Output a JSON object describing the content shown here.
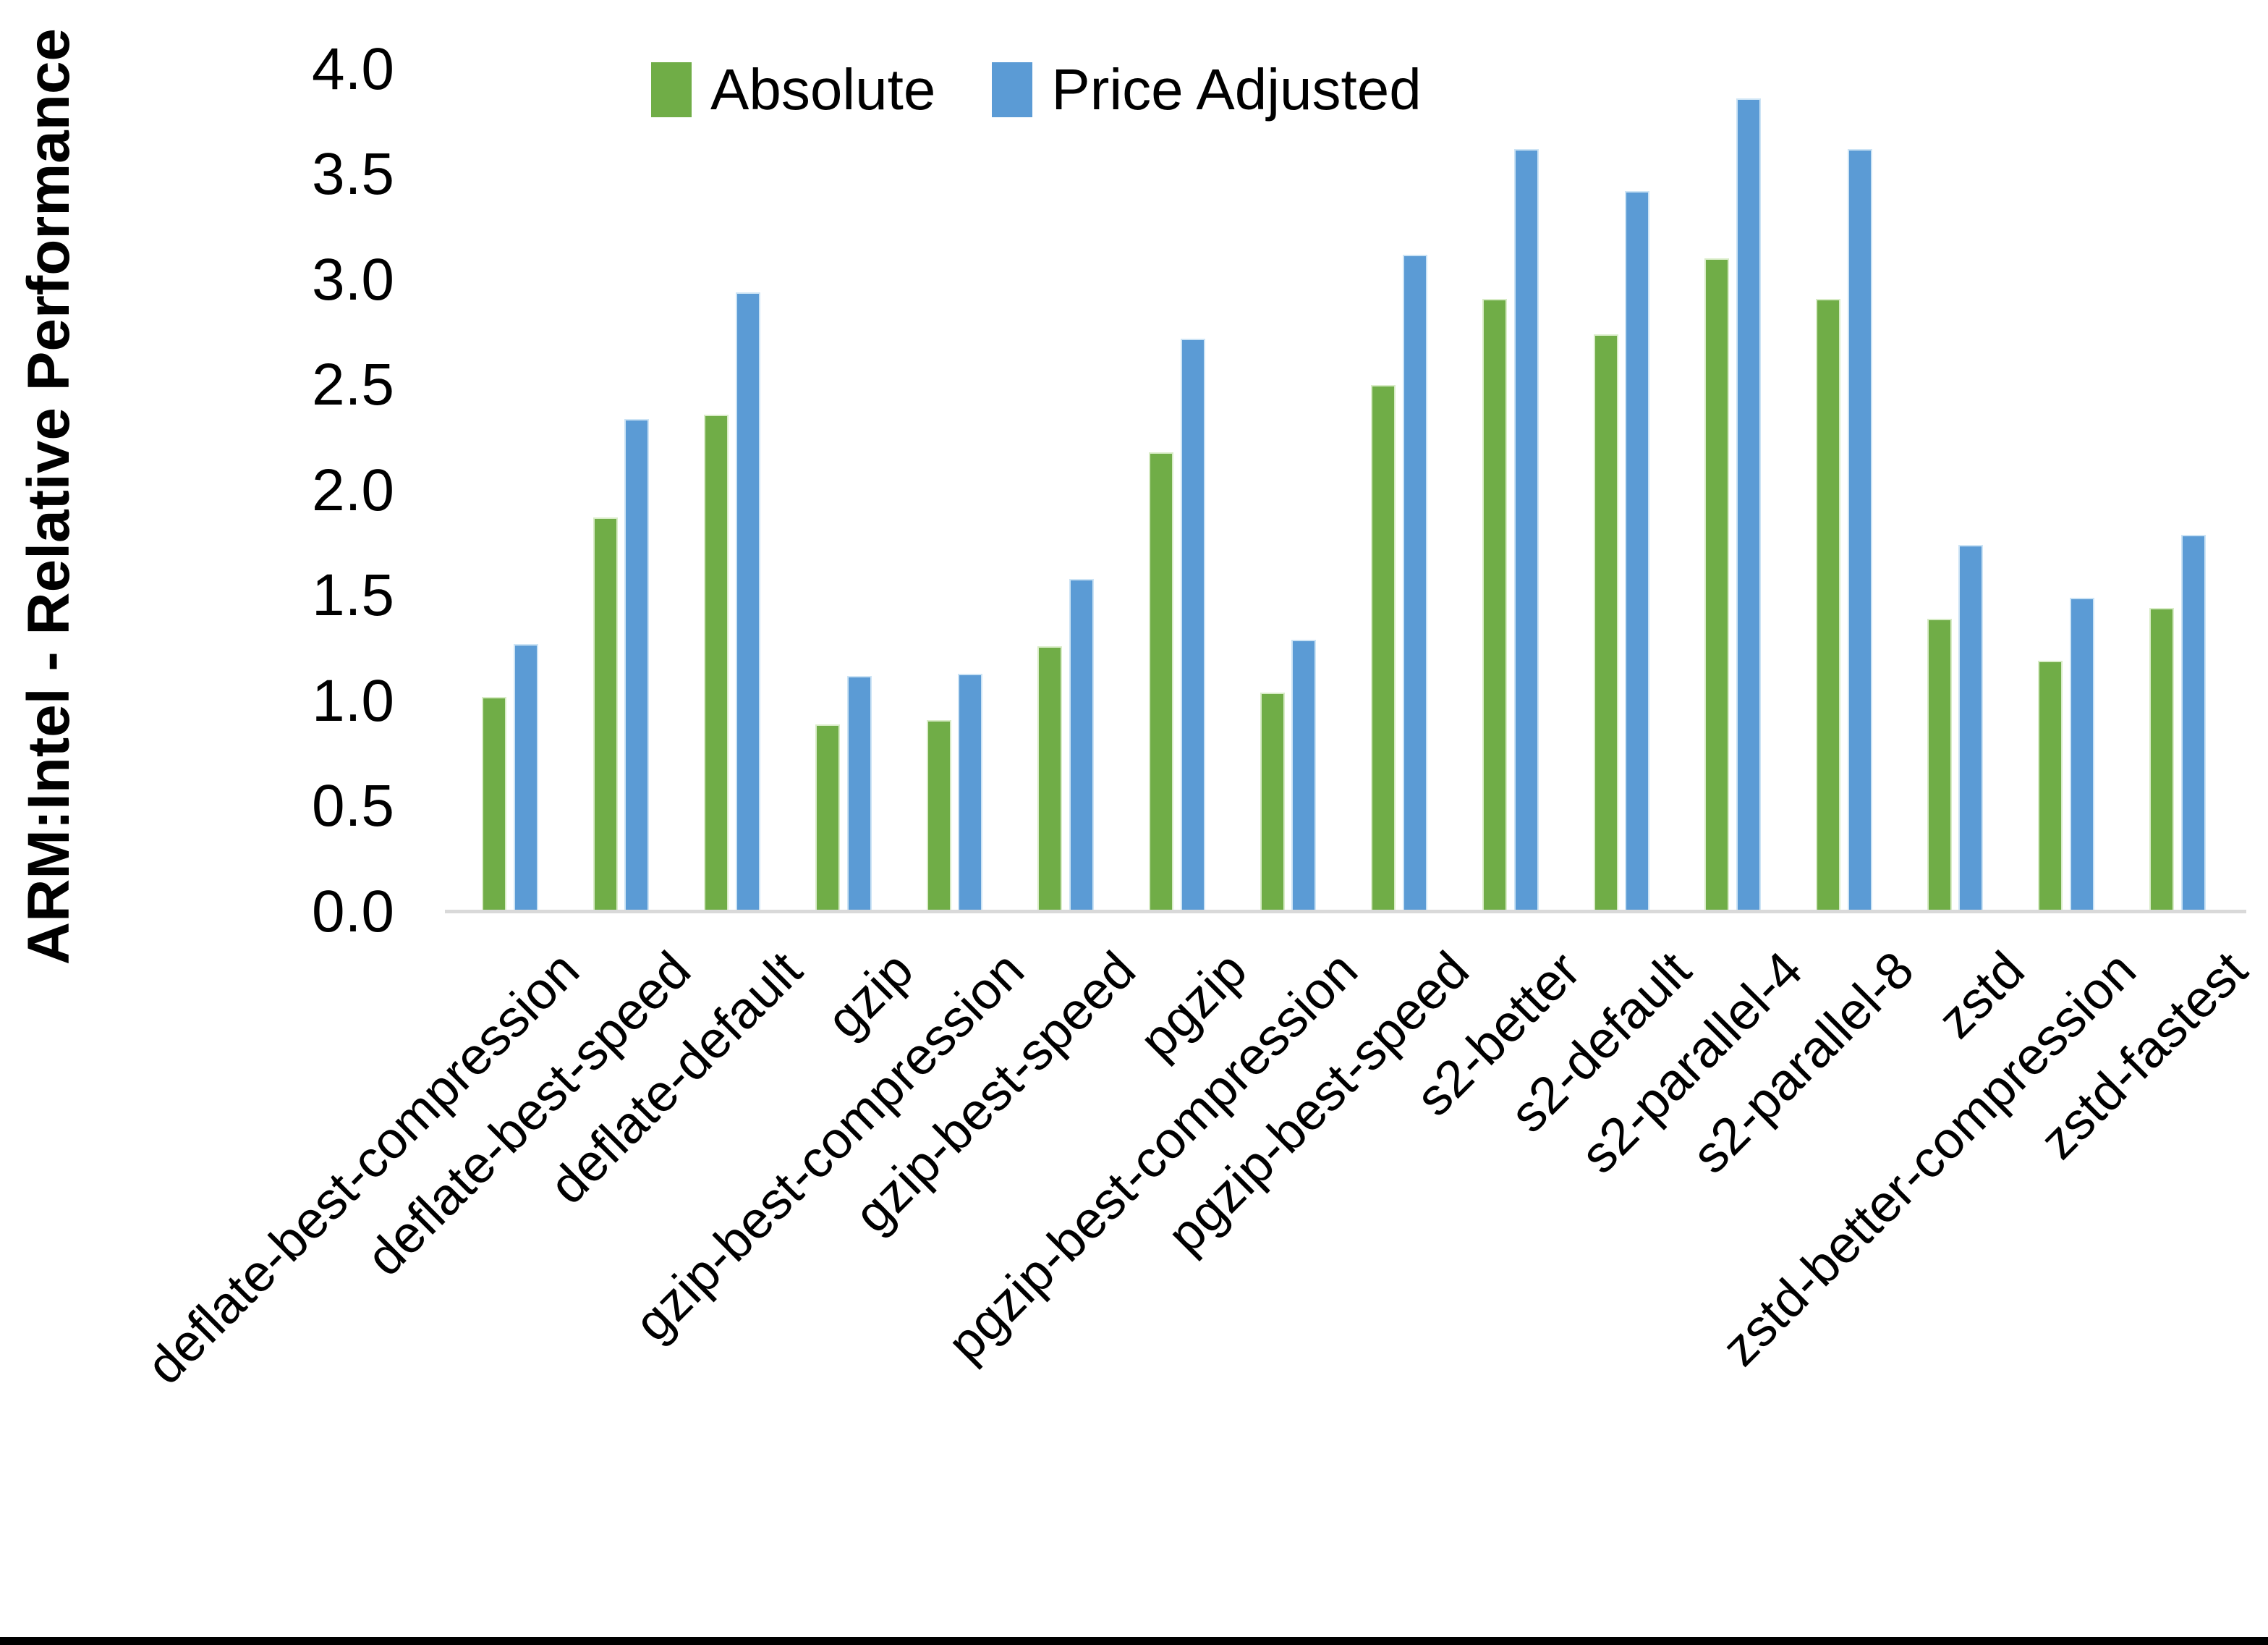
{
  "chart_data": {
    "type": "bar",
    "title": "",
    "xlabel": "",
    "ylabel": "ARM:Intel - Relative Performance",
    "ylim": [
      0.0,
      4.0
    ],
    "ytick_step": 0.5,
    "ytick_labels": [
      "4.0",
      "3.5",
      "3.0",
      "2.5",
      "2.0",
      "1.5",
      "1.0",
      "0.5",
      "0.0"
    ],
    "grid": "off",
    "legend_position": "top-center",
    "axis_line_color": "#d9d9d9",
    "background_color": "#ffffff",
    "bottom_border_color": "#000000",
    "categories": [
      "deflate-best-compression",
      "deflate-best-speed",
      "deflate-default",
      "gzip",
      "gzip-best-compression",
      "gzip-best-speed",
      "pgzip",
      "pgzip-best-compression",
      "pgzip-best-speed",
      "s2-better",
      "s2-default",
      "s2-parallel-4",
      "s2-parallel-8",
      "zstd",
      "zstd-better-compression",
      "zstd-fastest"
    ],
    "series": [
      {
        "name": "Absolute",
        "color": "#70AD47",
        "edge_color": "#d9ecc8",
        "values": [
          1.02,
          1.87,
          2.36,
          0.89,
          0.91,
          1.26,
          2.18,
          1.04,
          2.5,
          2.91,
          2.74,
          3.1,
          2.91,
          1.39,
          1.19,
          1.44
        ]
      },
      {
        "name": "Price Adjusted",
        "color": "#5B9BD5",
        "edge_color": "#cde4f5",
        "values": [
          1.27,
          2.34,
          2.94,
          1.12,
          1.13,
          1.58,
          2.72,
          1.29,
          3.12,
          3.62,
          3.42,
          3.86,
          3.62,
          1.74,
          1.49,
          1.79
        ]
      }
    ]
  }
}
